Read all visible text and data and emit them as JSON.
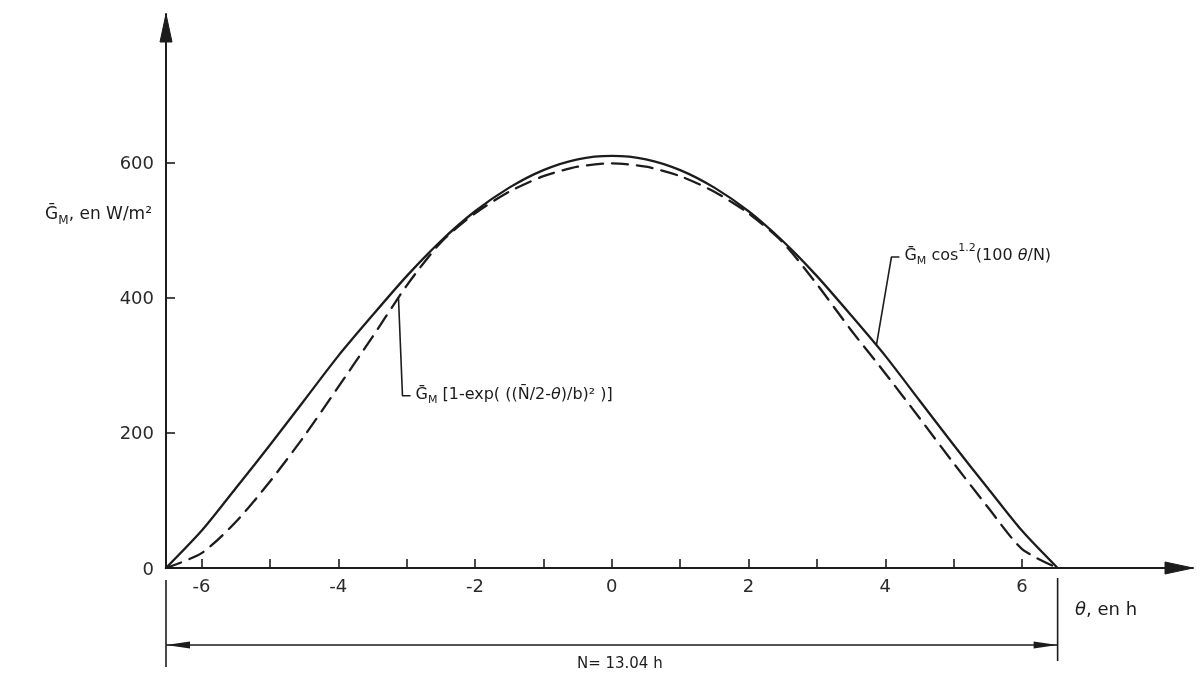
{
  "chart_data": {
    "type": "line",
    "xlabel": "θ, en h",
    "ylabel": "Ḡ$_{M}$, en W/m²",
    "annotations": [
      {
        "text": "Ḡ$_{M}$ cos$^{1.2}$(100 θ/N)",
        "x": 3.87,
        "y": 330
      },
      {
        "text": "Ḡ$_{M}$ [1-exp( ((N̄/2-θ)/b)² )]",
        "x": -3.12,
        "y": 400
      },
      "N= 13.04 h"
    ],
    "x": [
      -6.52,
      -6,
      -5.5,
      -5,
      -4.5,
      -4,
      -3.5,
      -3,
      -2.5,
      -2,
      -1.5,
      -1,
      -0.5,
      0,
      0.5,
      1,
      1.5,
      2,
      2.5,
      3,
      3.5,
      4,
      4.5,
      5,
      5.5,
      6,
      6.52
    ],
    "series": [
      {
        "color": "#1c1c1c",
        "line_style": "solid",
        "values": [
          0,
          55,
          118,
          182,
          248,
          314,
          374,
          432,
          484,
          528,
          563,
          589,
          605,
          610,
          605,
          589,
          563,
          528,
          484,
          432,
          374,
          314,
          248,
          182,
          118,
          55,
          0
        ]
      },
      {
        "color": "#1c1c1c",
        "line_style": "dashed",
        "values": [
          0,
          22,
          68,
          128,
          195,
          268,
          342,
          418,
          482,
          525,
          557,
          580,
          594,
          599,
          594,
          580,
          557,
          525,
          482,
          420,
          352,
          288,
          222,
          155,
          90,
          28,
          0
        ]
      }
    ],
    "xlim": [
      -6.52,
      8.5
    ],
    "ylim": [
      0,
      820
    ],
    "xticks": [
      -6,
      {
        "value": -5,
        "label": null
      },
      -4,
      {
        "value": -3,
        "label": null
      },
      -2,
      {
        "value": -1,
        "label": null
      },
      0,
      {
        "value": 1,
        "label": null
      },
      2,
      {
        "value": 3,
        "label": null
      },
      4,
      {
        "value": 5,
        "label": null
      },
      6
    ],
    "yticks": [
      0,
      200,
      400,
      600
    ],
    "marker": "none"
  }
}
